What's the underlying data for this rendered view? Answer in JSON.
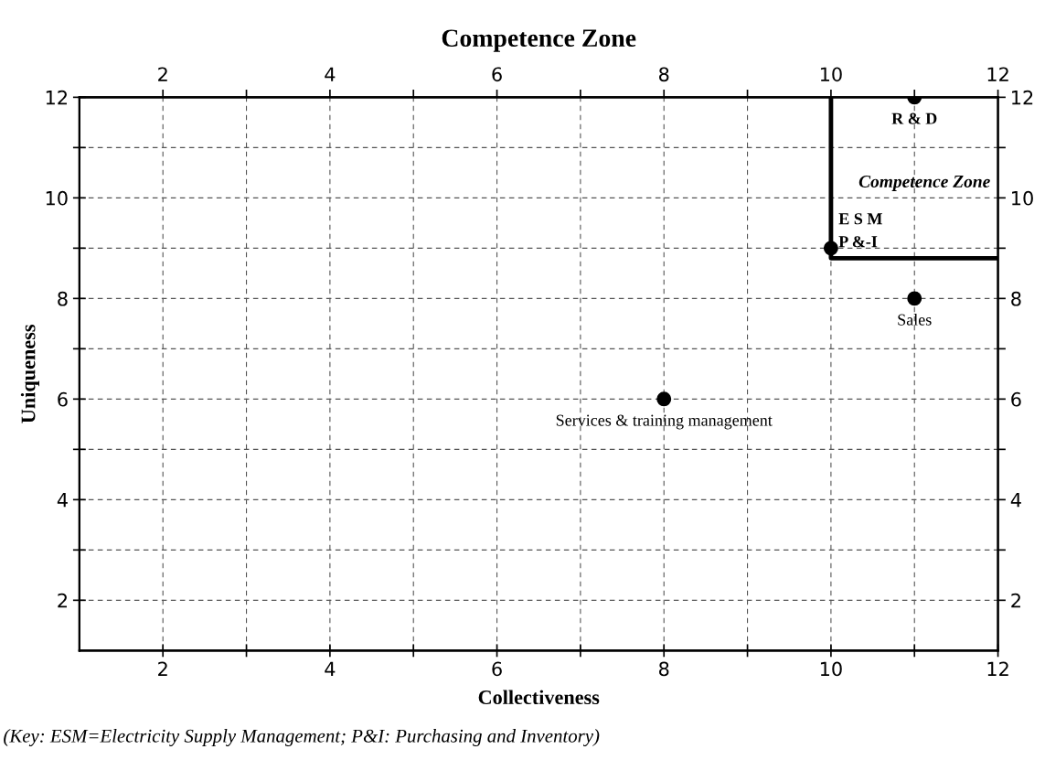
{
  "chart_data": {
    "type": "scatter",
    "title": "Competence Zone",
    "xlabel": "Collectiveness",
    "ylabel": "Uniqueness",
    "xlim": [
      1,
      12
    ],
    "ylim": [
      1,
      12
    ],
    "xticks": [
      2,
      {
        "value": 3,
        "label": null
      },
      4,
      {
        "value": 5,
        "label": null
      },
      6,
      {
        "value": 7,
        "label": null
      },
      8,
      {
        "value": 9,
        "label": null
      },
      10,
      {
        "value": 11,
        "label": null
      },
      12
    ],
    "yticks": [
      2,
      {
        "value": 3,
        "label": null
      },
      4,
      {
        "value": 5,
        "label": null
      },
      6,
      {
        "value": 7,
        "label": null
      },
      8,
      {
        "value": 9,
        "label": null
      },
      10,
      {
        "value": 11,
        "label": null
      },
      12
    ],
    "x2lim": [
      1,
      12
    ],
    "x2ticks": [
      2,
      {
        "value": 3,
        "label": null
      },
      4,
      {
        "value": 5,
        "label": null
      },
      6,
      {
        "value": 7,
        "label": null
      },
      8,
      {
        "value": 9,
        "label": null
      },
      10,
      {
        "value": 11,
        "label": null
      },
      12
    ],
    "y2lim": [
      1,
      12
    ],
    "y2ticks": [
      2,
      {
        "value": 3,
        "label": null
      },
      4,
      {
        "value": 5,
        "label": null
      },
      6,
      {
        "value": 7,
        "label": null
      },
      8,
      {
        "value": 9,
        "label": null
      },
      10,
      {
        "value": 11,
        "label": null
      },
      12
    ],
    "grid": true,
    "marker": "circle",
    "legend": false,
    "series": [
      {
        "color": "#000000",
        "x": [
          11,
          10,
          11,
          8
        ],
        "values": [
          12,
          9,
          8,
          6
        ]
      },
      {
        "type": "line",
        "color": "#000000",
        "line_style": "solid",
        "marker": "none",
        "x": [
          10,
          10,
          12
        ],
        "values": [
          12,
          8.8,
          8.8
        ]
      }
    ],
    "annotations": [
      {
        "text": "R & D",
        "x": 11,
        "y": 12
      },
      {
        "text": "E S M",
        "x": 10,
        "y": 9
      },
      {
        "text": "P &-I",
        "x": 10,
        "y": 9
      },
      {
        "text": "Sales",
        "x": 11,
        "y": 8
      },
      {
        "text": "Services & training management",
        "x": 8,
        "y": 6
      },
      "Competence Zone",
      "(Key: ESM=Electricity Supply Management; P&I: Purchasing and Inventory)"
    ]
  }
}
